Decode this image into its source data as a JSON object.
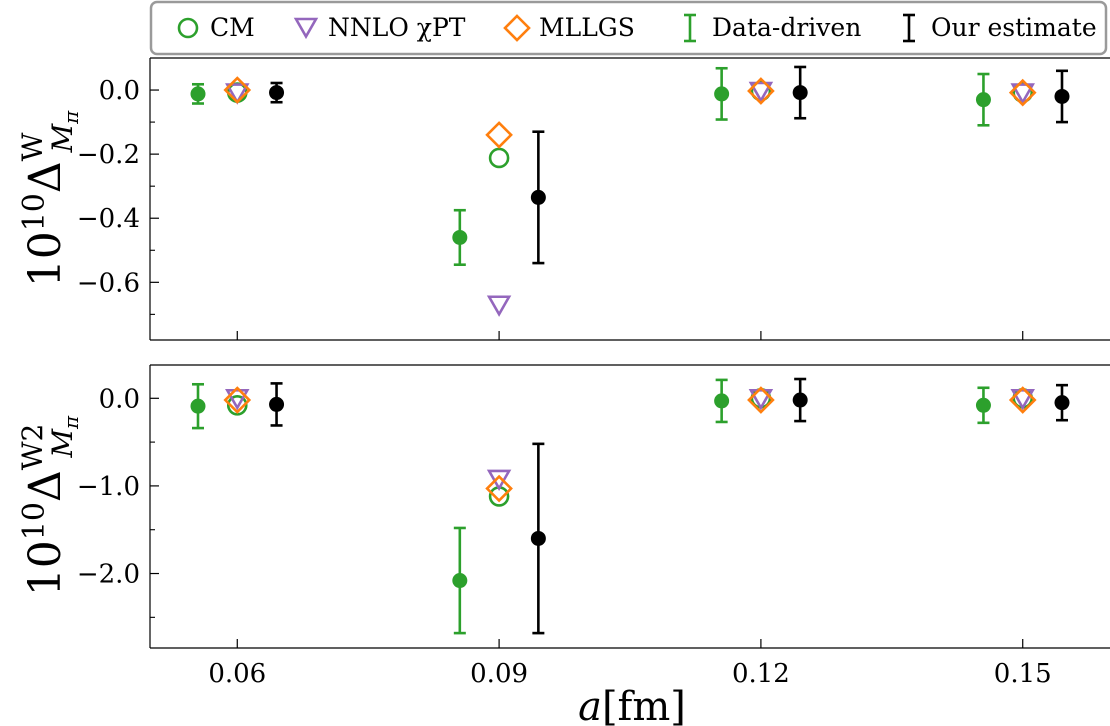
{
  "chart_data": {
    "type": "scatter",
    "legend": {
      "placement": "top",
      "entries": [
        {
          "key": "cm",
          "label": "CM",
          "marker": "open-circle",
          "color": "#2ca02c"
        },
        {
          "key": "nnlo",
          "label": "NNLO χPT",
          "marker": "open-triangle-down",
          "color": "#9467bd"
        },
        {
          "key": "mllgs",
          "label": "MLLGS",
          "marker": "open-diamond",
          "color": "#ff7f0e"
        },
        {
          "key": "data_driven",
          "label": "Data-driven",
          "marker": "errorbar",
          "color": "#2ca02c"
        },
        {
          "key": "our_estimate",
          "label": "Our estimate",
          "marker": "errorbar",
          "color": "#000000"
        }
      ]
    },
    "xlabel": {
      "base": "a",
      "unit": "[fm]"
    },
    "xlim": [
      0.05,
      0.16
    ],
    "xticks": [
      {
        "v": 0.06,
        "label": "0.06"
      },
      {
        "v": 0.09,
        "label": "0.09"
      },
      {
        "v": 0.12,
        "label": "0.12"
      },
      {
        "v": 0.15,
        "label": "0.15"
      }
    ],
    "data_driven_x_offset": -0.0045,
    "our_estimate_x_offset": 0.0045,
    "panels": [
      {
        "id": "top",
        "ylabel": {
          "base": "10",
          "exp": "10",
          "symbol": "Δ",
          "sup": "W",
          "sub": "M",
          "subsub": "π"
        },
        "ylim": [
          -0.78,
          0.1
        ],
        "yticks": [
          {
            "v": 0.0,
            "label": "0.0"
          },
          {
            "v": -0.2,
            "label": "−0.2"
          },
          {
            "v": -0.4,
            "label": "−0.4"
          },
          {
            "v": -0.6,
            "label": "−0.6"
          }
        ],
        "minor_yticks": [
          -0.1,
          -0.3,
          -0.5,
          -0.7
        ],
        "points": [
          {
            "a": 0.06,
            "cm": -0.008,
            "nnlo": -0.008,
            "mllgs": 0.0,
            "dd": -0.012,
            "dd_err": 0.03,
            "our": -0.008,
            "our_err": 0.03
          },
          {
            "a": 0.09,
            "cm": -0.212,
            "nnlo": -0.67,
            "mllgs": -0.14,
            "dd": -0.46,
            "dd_err": 0.085,
            "our": -0.335,
            "our_err": 0.205
          },
          {
            "a": 0.12,
            "cm": -0.003,
            "nnlo": -0.003,
            "mllgs": -0.003,
            "dd": -0.012,
            "dd_err": 0.08,
            "our": -0.008,
            "our_err": 0.08
          },
          {
            "a": 0.15,
            "cm": -0.008,
            "nnlo": -0.008,
            "mllgs": -0.008,
            "dd": -0.03,
            "dd_err": 0.08,
            "our": -0.02,
            "our_err": 0.08
          }
        ]
      },
      {
        "id": "bottom",
        "ylabel": {
          "base": "10",
          "exp": "10",
          "symbol": "Δ",
          "sup": "W2",
          "sub": "M",
          "subsub": "π"
        },
        "ylim": [
          -2.85,
          0.38
        ],
        "yticks": [
          {
            "v": 0.0,
            "label": "0.0"
          },
          {
            "v": -1.0,
            "label": "−1.0"
          },
          {
            "v": -2.0,
            "label": "−2.0"
          }
        ],
        "minor_yticks": [
          -0.5,
          -1.5,
          -2.5
        ],
        "points": [
          {
            "a": 0.06,
            "cm": -0.08,
            "nnlo": -0.0,
            "mllgs": -0.02,
            "dd": -0.09,
            "dd_err": 0.25,
            "our": -0.07,
            "our_err": 0.24
          },
          {
            "a": 0.09,
            "cm": -1.12,
            "nnlo": -0.92,
            "mllgs": -1.03,
            "dd": -2.08,
            "dd_err": 0.6,
            "our": -1.6,
            "our_err": 1.08
          },
          {
            "a": 0.12,
            "cm": -0.0,
            "nnlo": -0.0,
            "mllgs": -0.02,
            "dd": -0.03,
            "dd_err": 0.24,
            "our": -0.02,
            "our_err": 0.24
          },
          {
            "a": 0.15,
            "cm": -0.0,
            "nnlo": -0.0,
            "mllgs": -0.02,
            "dd": -0.08,
            "dd_err": 0.2,
            "our": -0.05,
            "our_err": 0.2
          }
        ]
      }
    ]
  }
}
